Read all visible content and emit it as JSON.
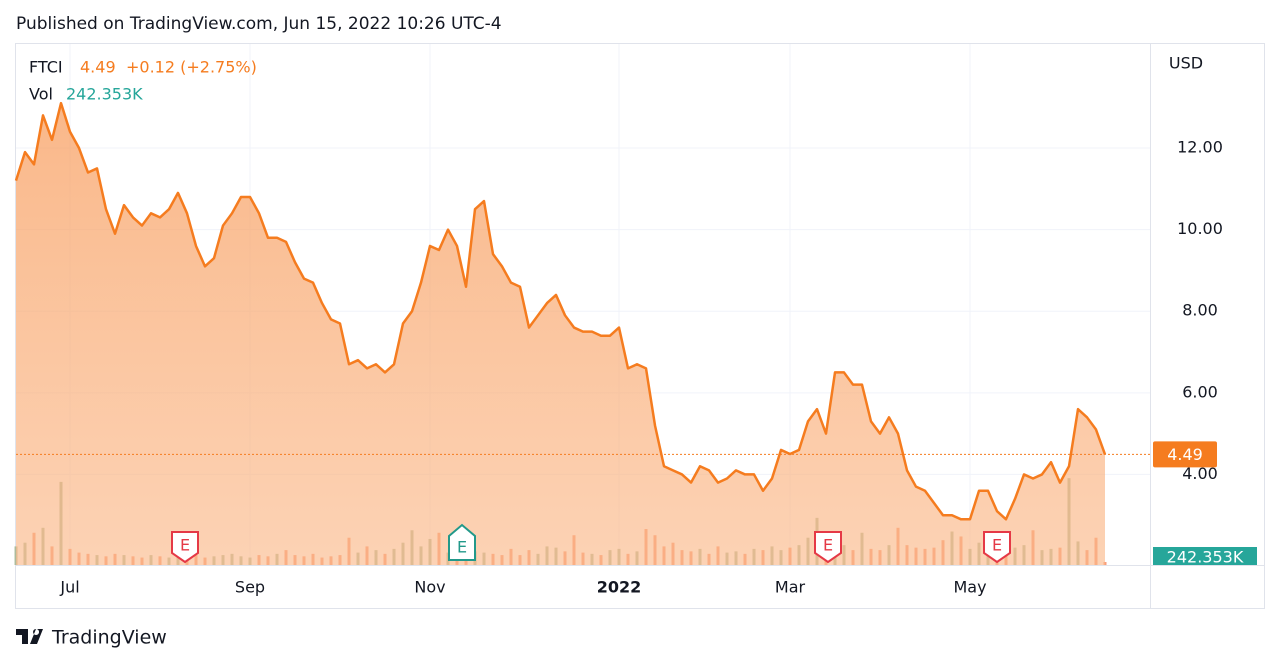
{
  "chart_data": {
    "type": "area",
    "title": "Published on TradingView.com, Jun 15, 2022 10:26 UTC-4",
    "symbol": "FTCI",
    "last": 4.49,
    "change_label": "+0.12 (+2.75%)",
    "currency": "USD",
    "ylim": [
      1.78,
      14.55
    ],
    "yticks": [
      {
        "value": 4,
        "label": "4.00"
      },
      {
        "value": 6,
        "label": "6.00"
      },
      {
        "value": 8,
        "label": "8.00"
      },
      {
        "value": 10,
        "label": "10.00"
      },
      {
        "value": 12,
        "label": "12.00"
      }
    ],
    "grid": true,
    "categories": [
      null,
      null,
      null,
      null,
      null,
      null,
      "Jul",
      null,
      null,
      null,
      null,
      null,
      null,
      null,
      null,
      null,
      null,
      null,
      null,
      null,
      null,
      null,
      null,
      null,
      null,
      null,
      "Sep",
      null,
      null,
      null,
      null,
      null,
      null,
      null,
      null,
      null,
      null,
      null,
      null,
      null,
      null,
      null,
      null,
      null,
      null,
      null,
      "Nov",
      null,
      null,
      null,
      null,
      null,
      null,
      null,
      null,
      null,
      null,
      null,
      null,
      null,
      null,
      null,
      null,
      null,
      null,
      null,
      null,
      "2022",
      null,
      null,
      null,
      null,
      null,
      null,
      null,
      null,
      null,
      null,
      null,
      null,
      null,
      null,
      null,
      null,
      null,
      null,
      "Mar",
      null,
      null,
      null,
      null,
      null,
      null,
      null,
      null,
      null,
      null,
      null,
      null,
      null,
      null,
      null,
      null,
      null,
      null,
      null,
      "May",
      null,
      null,
      null,
      null,
      null,
      null,
      null,
      null,
      null,
      null,
      null,
      null,
      null,
      null,
      null
    ],
    "series": [
      {
        "name": "FTCI",
        "color": "#f57c1f",
        "values": [
          11.2,
          11.9,
          11.6,
          12.8,
          12.2,
          13.1,
          12.4,
          12.0,
          11.4,
          11.5,
          10.5,
          9.9,
          10.6,
          10.3,
          10.1,
          10.4,
          10.3,
          10.5,
          10.9,
          10.4,
          9.6,
          9.1,
          9.3,
          10.1,
          10.4,
          10.8,
          10.8,
          10.4,
          9.8,
          9.8,
          9.7,
          9.2,
          8.8,
          8.7,
          8.2,
          7.8,
          7.7,
          6.7,
          6.8,
          6.6,
          6.7,
          6.5,
          6.7,
          7.7,
          8.0,
          8.7,
          9.6,
          9.5,
          10.0,
          9.6,
          8.6,
          10.5,
          10.7,
          9.4,
          9.1,
          8.7,
          8.6,
          7.6,
          7.9,
          8.2,
          8.4,
          7.9,
          7.6,
          7.5,
          7.5,
          7.4,
          7.4,
          7.6,
          6.6,
          6.7,
          6.6,
          5.2,
          4.2,
          4.1,
          4.0,
          3.8,
          4.2,
          4.1,
          3.8,
          3.9,
          4.1,
          4.0,
          4.0,
          3.6,
          3.9,
          4.6,
          4.5,
          4.6,
          5.3,
          5.6,
          5.0,
          6.5,
          6.5,
          6.2,
          6.2,
          5.3,
          5.0,
          5.4,
          5.0,
          4.1,
          3.7,
          3.6,
          3.3,
          3.0,
          3.0,
          2.9,
          2.9,
          3.6,
          3.6,
          3.1,
          2.9,
          3.4,
          4.0,
          3.9,
          4.0,
          4.3,
          3.8,
          4.2,
          5.6,
          5.4,
          5.1,
          4.49
        ]
      },
      {
        "name": "Vol",
        "color": "#26a69a",
        "down_color": "#f7845a",
        "up_color": "#9fb08a",
        "vlim": [
          0,
          42000
        ],
        "last": 242.353,
        "last_label": "242.353K",
        "values": [
          1500,
          1800,
          2600,
          3000,
          1500,
          6700,
          1300,
          1000,
          900,
          800,
          700,
          900,
          800,
          700,
          600,
          800,
          700,
          600,
          900,
          700,
          800,
          600,
          700,
          800,
          900,
          700,
          600,
          800,
          700,
          900,
          1200,
          800,
          700,
          900,
          600,
          700,
          800,
          2200,
          1000,
          1500,
          1200,
          900,
          1300,
          1800,
          2800,
          1500,
          2100,
          2600,
          1000,
          900,
          1200,
          1100,
          1000,
          900,
          800,
          1300,
          800,
          1200,
          900,
          1500,
          1400,
          1100,
          2400,
          1000,
          900,
          800,
          1200,
          1300,
          900,
          1100,
          2900,
          2400,
          1500,
          1800,
          1200,
          1100,
          1300,
          900,
          1500,
          1000,
          1100,
          900,
          1300,
          1200,
          1500,
          1200,
          1400,
          1600,
          2200,
          3800,
          1800,
          1400,
          1600,
          1200,
          2600,
          1300,
          1200,
          1600,
          3000,
          1600,
          1400,
          1300,
          1400,
          2000,
          2700,
          2300,
          1300,
          1800,
          1200,
          1000,
          1300,
          1400,
          1600,
          2800,
          1200,
          1300,
          1400,
          7000,
          1900,
          1200,
          2200,
          242.353
        ]
      }
    ],
    "events": [
      {
        "label": "E",
        "color": "#e53946"
      },
      {
        "label": "E",
        "color": "#22998a"
      },
      {
        "label": "E",
        "color": "#e53946"
      },
      {
        "label": "E",
        "color": "#e53946"
      }
    ],
    "footer": "TradingView"
  }
}
